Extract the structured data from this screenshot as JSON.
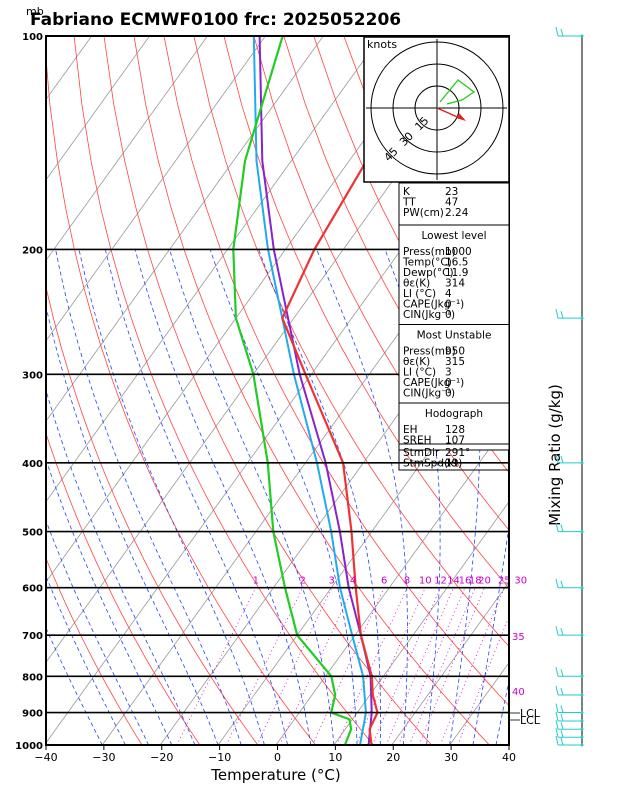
{
  "title": "Fabriano ECMWF0100  frc: 2025052206",
  "units_top": "mb",
  "chart_data": {
    "type": "skew-t",
    "xlabel": "Temperature (°C)",
    "ylabel_right": "Mixing Ratio (g/kg)",
    "xlim": [
      -40,
      40
    ],
    "x_ticks": [
      "−40",
      "−30",
      "−20",
      "−10",
      "0",
      "10",
      "20",
      "30",
      "40"
    ],
    "plim": [
      1000,
      100
    ],
    "p_ticks": [
      "100",
      "200",
      "300",
      "400",
      "500",
      "600",
      "700",
      "800",
      "900",
      "1000"
    ],
    "mixing_ratio_labels": [
      "1",
      "2",
      "3",
      "4",
      "6",
      "8",
      "10",
      "12",
      "14",
      "16",
      "18",
      "20",
      "25",
      "30"
    ],
    "side_labels": [
      "35",
      "40"
    ],
    "lcl_labels": [
      "LCL",
      "LCL"
    ],
    "temperature": {
      "p": [
        1000,
        950,
        900,
        850,
        800,
        700,
        600,
        500,
        400,
        300,
        250,
        200,
        150,
        100
      ],
      "t": [
        16.5,
        14.2,
        13.5,
        10.5,
        8.0,
        1.0,
        -5.8,
        -13.5,
        -23.5,
        -41.0,
        -52.0,
        -55.0,
        -57.0,
        -56.0
      ]
    },
    "dewpoint": {
      "p": [
        1000,
        950,
        920,
        900,
        850,
        800,
        700,
        600,
        500,
        400,
        300,
        250,
        200,
        150,
        100
      ],
      "t": [
        11.9,
        11.0,
        9.5,
        5.5,
        4.0,
        1.0,
        -10.0,
        -18.0,
        -27.0,
        -36.5,
        -50.0,
        -60.0,
        -69.0,
        -78.0,
        -87.0
      ]
    },
    "parcel_moist": {
      "p": [
        1000,
        900,
        800,
        700,
        600,
        500,
        400,
        300,
        200,
        150,
        100
      ],
      "t": [
        14.5,
        11.5,
        6.5,
        -0.5,
        -8.5,
        -17.0,
        -28.0,
        -43.0,
        -63.0,
        -76.0,
        -92.0
      ]
    },
    "parcel_mu": {
      "p": [
        1000,
        900,
        800,
        700,
        600,
        500,
        400,
        300,
        200,
        150,
        100
      ],
      "t": [
        16.0,
        12.5,
        7.8,
        1.0,
        -7.0,
        -15.5,
        -26.5,
        -42.0,
        -62.0,
        -75.0,
        -91.0
      ]
    }
  },
  "hodograph": {
    "title": "knots",
    "ring_labels": [
      "15",
      "30",
      "45"
    ]
  },
  "indices": {
    "top": [
      {
        "label": "K",
        "value": "23"
      },
      {
        "label": "TT",
        "value": "47"
      },
      {
        "label": "PW(cm)",
        "value": "2.24"
      }
    ],
    "lowest_title": "Lowest level",
    "lowest": [
      {
        "label": "Press(mb)",
        "value": "1000"
      },
      {
        "label": "Temp(°C)",
        "value": "16.5"
      },
      {
        "label": "Dewp(°C)",
        "value": "11.9"
      },
      {
        "label": "θε(K)",
        "value": "314"
      },
      {
        "label": "LI (°C)",
        "value": "4"
      },
      {
        "label": "CAPE(Jkg⁻¹)",
        "value": "0"
      },
      {
        "label": "CIN(Jkg⁻¹)",
        "value": "0"
      }
    ],
    "mu_title": "Most Unstable",
    "mu": [
      {
        "label": "Press(mb)",
        "value": "950"
      },
      {
        "label": "θε(K)",
        "value": "315"
      },
      {
        "label": "LI (°C)",
        "value": "3"
      },
      {
        "label": "CAPE(Jkg⁻¹)",
        "value": "0"
      },
      {
        "label": "CIN(Jkg⁻¹)",
        "value": "0"
      }
    ],
    "hodo_title": "Hodograph",
    "hodo": [
      {
        "label": "EH",
        "value": "128"
      },
      {
        "label": "SREH",
        "value": "107"
      },
      {
        "label": "StmDir",
        "value": "291°"
      },
      {
        "label": "StmSpd(kt)",
        "value": "19"
      }
    ]
  },
  "colors": {
    "isotherm": "#999999",
    "dry_adiabat": "#ff4444",
    "moist_adiabat": "#2244ff",
    "mixing_ratio": "#cc00cc",
    "temperature": "#ee3333",
    "dewpoint": "#22cc22",
    "parcel_moist": "#22aaee",
    "parcel_mu": "#8822cc",
    "barb": "#22cccc"
  }
}
